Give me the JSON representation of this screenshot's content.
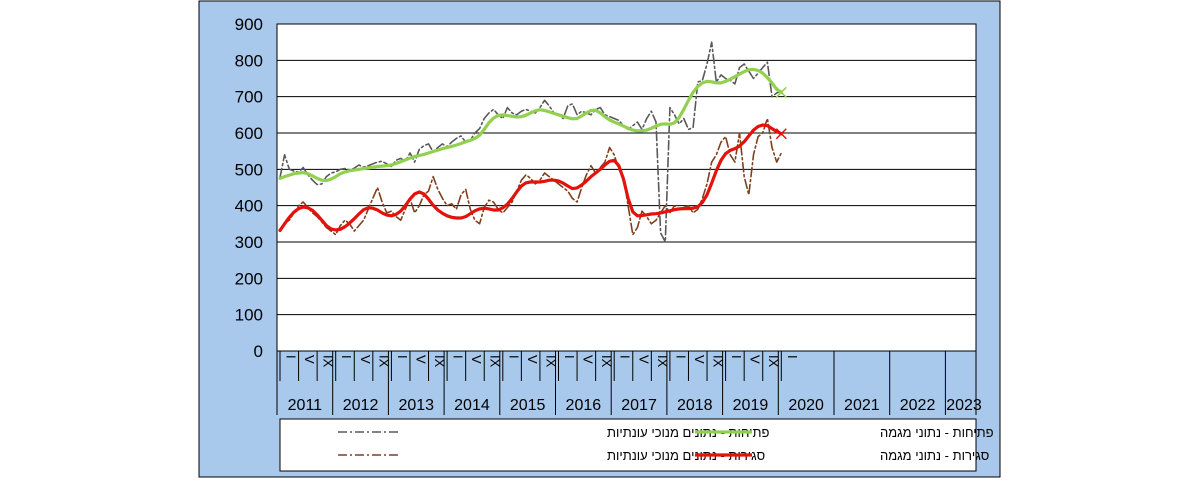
{
  "chart_data": {
    "type": "line",
    "y_ticks": [
      "0",
      "100",
      "200",
      "300",
      "400",
      "500",
      "600",
      "700",
      "800",
      "900"
    ],
    "ylim": [
      0,
      900
    ],
    "grid": "horizontal",
    "legend_placement": "bottom",
    "years": [
      "2011",
      "2012",
      "2013",
      "2014",
      "2015",
      "2016",
      "2017",
      "2018",
      "2019",
      "2020",
      "2021",
      "2022",
      "2023"
    ],
    "month_markers": [
      "I",
      "V",
      "IX"
    ],
    "series": [
      {
        "name": "פתיחות - נתונים מנוכי עונתיות",
        "color": "#595959",
        "style": "dashdot",
        "values": [
          478,
          540,
          500,
          495,
          492,
          505,
          485,
          470,
          458,
          460,
          480,
          490,
          493,
          500,
          502,
          498,
          503,
          512,
          506,
          510,
          515,
          520,
          522,
          515,
          508,
          525,
          530,
          522,
          545,
          520,
          555,
          565,
          570,
          548,
          560,
          570,
          562,
          575,
          585,
          592,
          575,
          580,
          600,
          612,
          640,
          655,
          665,
          650,
          640,
          670,
          655,
          650,
          660,
          665,
          660,
          655,
          670,
          690,
          675,
          655,
          650,
          640,
          675,
          680,
          650,
          660,
          655,
          650,
          665,
          670,
          650,
          645,
          640,
          635,
          620,
          610,
          620,
          630,
          610,
          640,
          660,
          630,
          325,
          300,
          670,
          650,
          625,
          640,
          610,
          615,
          740,
          745,
          790,
          850,
          740,
          760,
          750,
          745,
          735,
          780,
          790,
          770,
          750,
          765,
          780,
          795,
          700,
          710,
          715
        ]
      },
      {
        "name": "פתיחות - נתוני מגמה",
        "color": "#92d050",
        "style": "solid",
        "values": [
          475,
          480,
          484,
          488,
          490,
          491,
          488,
          482,
          475,
          470,
          469,
          473,
          480,
          488,
          493,
          496,
          498,
          500,
          502,
          504,
          506,
          508,
          509,
          510,
          512,
          516,
          521,
          526,
          531,
          535,
          538,
          541,
          545,
          549,
          553,
          557,
          560,
          563,
          567,
          571,
          576,
          580,
          585,
          594,
          610,
          628,
          641,
          648,
          650,
          648,
          646,
          644,
          645,
          649,
          655,
          661,
          664,
          662,
          658,
          654,
          650,
          646,
          642,
          639,
          640,
          647,
          655,
          662,
          663,
          655,
          645,
          636,
          630,
          625,
          619,
          613,
          608,
          606,
          606,
          608,
          613,
          619,
          624,
          625,
          624,
          628,
          643,
          665,
          690,
          712,
          728,
          738,
          742,
          741,
          738,
          738,
          742,
          748,
          755,
          762,
          769,
          774,
          775,
          772,
          765,
          752,
          738,
          720,
          712
        ]
      },
      {
        "name": "סגירות - נתונים מנוכי עונתיות",
        "color": "#7f3f1f",
        "style": "dashdot",
        "values": [
          335,
          350,
          360,
          380,
          400,
          410,
          395,
          380,
          370,
          355,
          340,
          330,
          320,
          345,
          360,
          350,
          330,
          345,
          360,
          390,
          420,
          450,
          410,
          380,
          385,
          370,
          360,
          390,
          420,
          380,
          400,
          430,
          440,
          480,
          445,
          420,
          400,
          405,
          390,
          430,
          445,
          390,
          360,
          350,
          395,
          415,
          410,
          390,
          380,
          395,
          410,
          440,
          470,
          485,
          475,
          460,
          470,
          490,
          480,
          470,
          460,
          450,
          440,
          420,
          410,
          450,
          485,
          510,
          490,
          505,
          520,
          560,
          540,
          500,
          480,
          400,
          320,
          340,
          385,
          370,
          350,
          360,
          380,
          400,
          380,
          400,
          390,
          395,
          400,
          380,
          390,
          420,
          460,
          520,
          540,
          575,
          590,
          540,
          520,
          600,
          480,
          430,
          540,
          590,
          600,
          640,
          560,
          520,
          545
        ]
      },
      {
        "name": "סגירות - נתוני מגמה",
        "color": "#e3120b",
        "style": "solid",
        "values": [
          332,
          350,
          368,
          382,
          392,
          396,
          394,
          387,
          375,
          360,
          345,
          336,
          333,
          335,
          342,
          352,
          364,
          377,
          389,
          394,
          393,
          388,
          380,
          374,
          372,
          376,
          385,
          400,
          418,
          432,
          438,
          432,
          418,
          401,
          388,
          379,
          372,
          368,
          366,
          366,
          370,
          378,
          386,
          391,
          393,
          391,
          388,
          388,
          394,
          404,
          420,
          438,
          454,
          463,
          465,
          465,
          465,
          467,
          470,
          470,
          468,
          462,
          454,
          447,
          449,
          457,
          468,
          480,
          490,
          500,
          512,
          522,
          525,
          510,
          473,
          420,
          383,
          372,
          373,
          375,
          377,
          378,
          380,
          383,
          386,
          389,
          391,
          392,
          392,
          393,
          397,
          409,
          430,
          462,
          496,
          525,
          543,
          552,
          557,
          564,
          576,
          592,
          608,
          618,
          622,
          620,
          612,
          604,
          598
        ]
      }
    ]
  }
}
